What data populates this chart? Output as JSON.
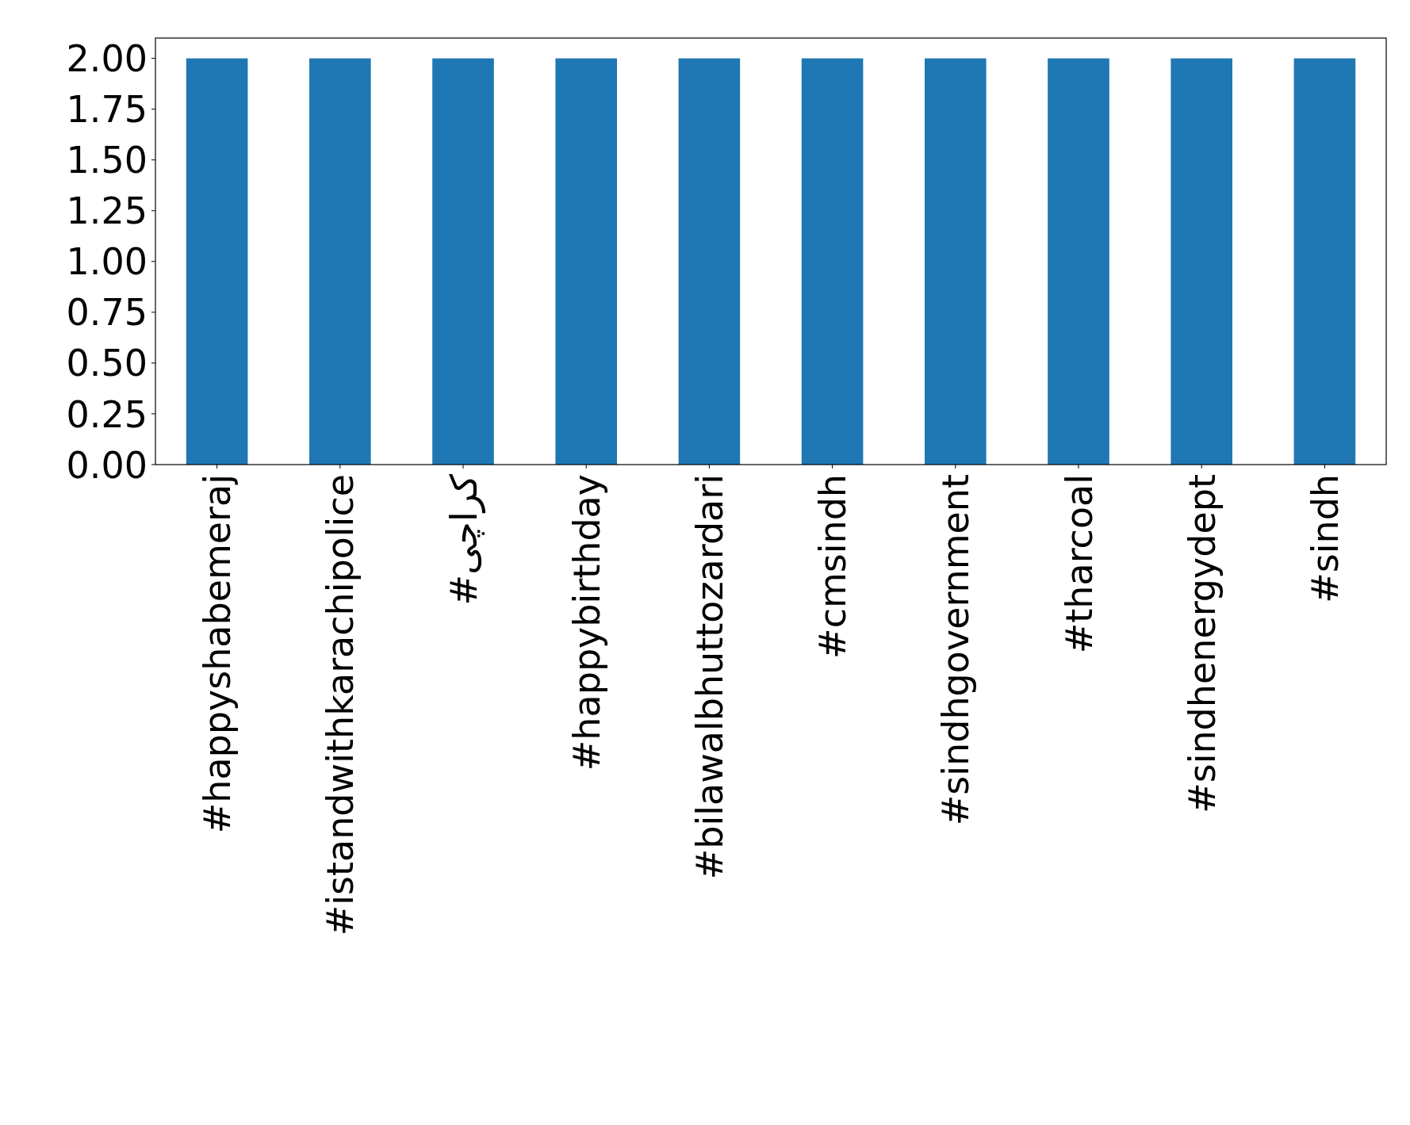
{
  "chart_data": {
    "type": "bar",
    "categories": [
      "#happyshabemeraj",
      "#istandwithkarachipolice",
      "#کراچی",
      "#happybirthday",
      "#bilawalbhuttozardari",
      "#cmsindh",
      "#sindhgovernment",
      "#tharcoal",
      "#sindhenergydept",
      "#sindh"
    ],
    "values": [
      2,
      2,
      2,
      2,
      2,
      2,
      2,
      2,
      2,
      2
    ],
    "color": "#1f77b4",
    "ylim": [
      0,
      2.1
    ],
    "yticks": [
      {
        "value": 0,
        "label": "0.00"
      },
      {
        "value": 0.25,
        "label": "0.25"
      },
      {
        "value": 0.5,
        "label": "0.50"
      },
      {
        "value": 0.75,
        "label": "0.75"
      },
      {
        "value": 1,
        "label": "1.00"
      },
      {
        "value": 1.25,
        "label": "1.25"
      },
      {
        "value": 1.5,
        "label": "1.50"
      },
      {
        "value": 1.75,
        "label": "1.75"
      },
      {
        "value": 2,
        "label": "2.00"
      }
    ],
    "grid": false
  }
}
